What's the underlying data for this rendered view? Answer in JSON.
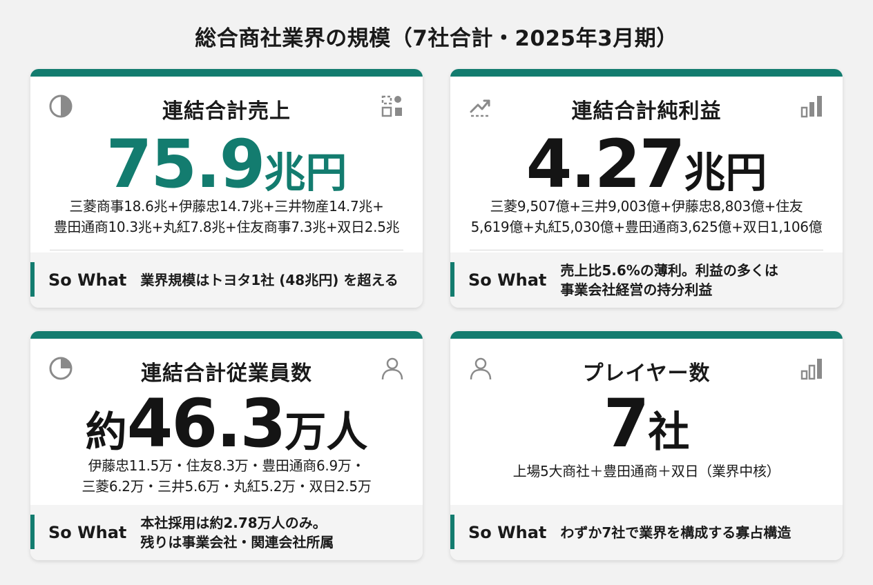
{
  "page": {
    "title": "総合商社業界の規模（7社合計・2025年3月期）"
  },
  "theme": {
    "accent": "#137c6f",
    "icon_gray": "#8a8a8a"
  },
  "cards": [
    {
      "label": "連結合計売上",
      "prefix": "",
      "value": "75.9",
      "unit": "兆円",
      "breakdown_lines": [
        "三菱商事18.6兆+伊藤忠14.7兆+三井物産14.7兆+",
        "豊田通商10.3兆+丸紅7.8兆+住友商事7.3兆+双日2.5兆"
      ],
      "sowhat_label": "So What",
      "sowhat_text": "業界規模はトヨタ1社 (48兆円) を超える",
      "left_icon": "pie-chart-icon",
      "right_icon": "dashboard-icon"
    },
    {
      "label": "連結合計純利益",
      "prefix": "",
      "value": "4.27",
      "unit": "兆円",
      "breakdown_lines": [
        "三菱9,507億+三井9,003億+伊藤忠8,803億+住友",
        "5,619億+丸紅5,030億+豊田通商3,625億+双日1,106億"
      ],
      "sowhat_label": "So What",
      "sowhat_text": "売上比5.6%の薄利。利益の多くは\n事業会社経営の持分利益",
      "left_icon": "trending-up-icon",
      "right_icon": "bar-chart-icon"
    },
    {
      "label": "連結合計従業員数",
      "prefix": "約",
      "value": "46.3",
      "unit": "万人",
      "breakdown_lines": [
        "伊藤忠11.5万・住友8.3万・豊田通商6.9万・",
        "三菱6.2万・三井5.6万・丸紅5.2万・双日2.5万"
      ],
      "sowhat_label": "So What",
      "sowhat_text": "本社採用は約2.78万人のみ。\n残りは事業会社・関連会社所属",
      "left_icon": "pie-chart-icon",
      "right_icon": "user-icon"
    },
    {
      "label": "プレイヤー数",
      "prefix": "",
      "value": "7",
      "unit": "社",
      "breakdown_lines": [
        "上場5大商社＋豊田通商＋双日（業界中核）"
      ],
      "sowhat_label": "So What",
      "sowhat_text": "わずか7社で業界を構成する寡占構造",
      "left_icon": "user-icon",
      "right_icon": "bar-chart-icon"
    }
  ]
}
